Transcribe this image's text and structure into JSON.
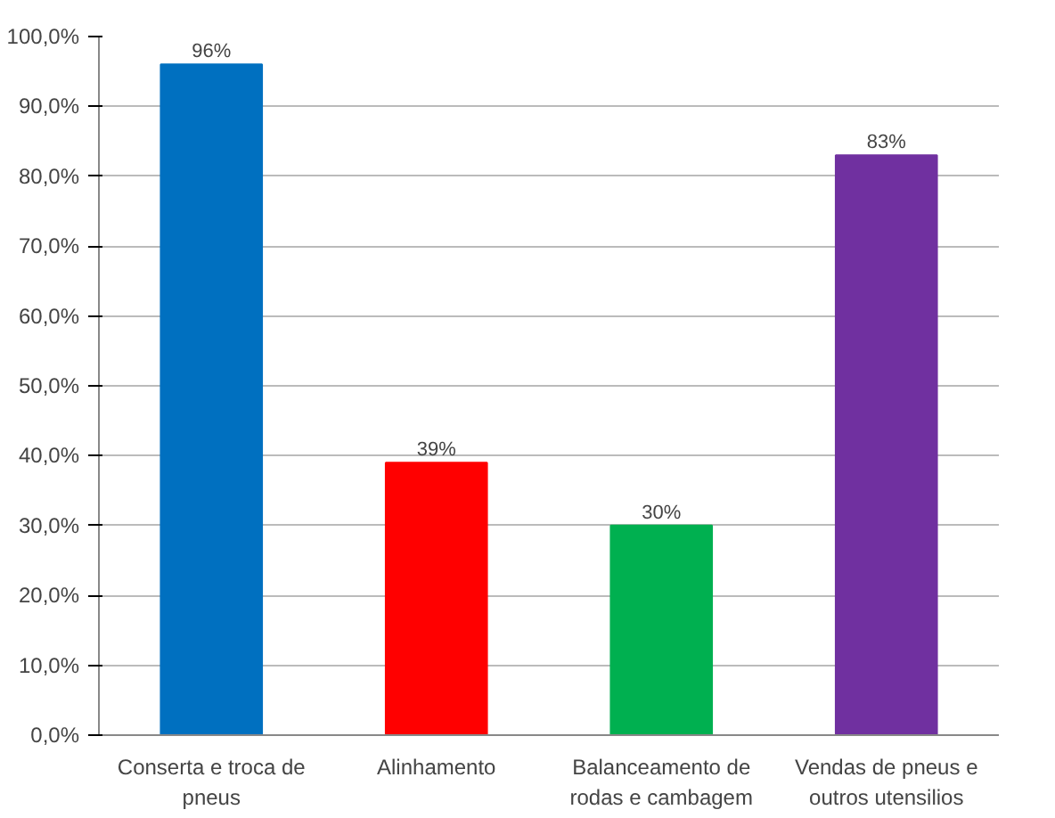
{
  "chart_data": {
    "type": "bar",
    "categories": [
      "Conserta e troca de pneus",
      "Alinhamento",
      "Balanceamento de rodas e cambagem",
      "Vendas de pneus e outros utensilios"
    ],
    "values": [
      96,
      39,
      30,
      83
    ],
    "colors": [
      "#0070c0",
      "#ff0000",
      "#00b050",
      "#7030a0"
    ],
    "value_labels": [
      "96%",
      "39%",
      "30%",
      "83%"
    ],
    "ylim": [
      0,
      100
    ],
    "yticks": [
      {
        "value": 0,
        "label": "0,0%"
      },
      {
        "value": 10,
        "label": "10,0%"
      },
      {
        "value": 20,
        "label": "20,0%"
      },
      {
        "value": 30,
        "label": "30,0%"
      },
      {
        "value": 40,
        "label": "40,0%"
      },
      {
        "value": 50,
        "label": "50,0%"
      },
      {
        "value": 60,
        "label": "60,0%"
      },
      {
        "value": 70,
        "label": "70,0%"
      },
      {
        "value": 80,
        "label": "80,0%"
      },
      {
        "value": 90,
        "label": "90,0%"
      },
      {
        "value": 100,
        "label": "100,0%"
      }
    ],
    "grid": "y"
  }
}
